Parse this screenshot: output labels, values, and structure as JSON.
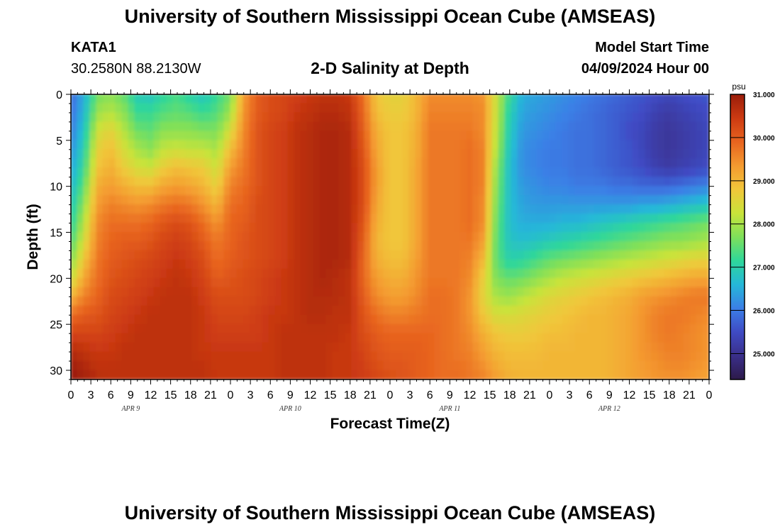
{
  "header": {
    "title": "University of Southern Mississippi Ocean Cube (AMSEAS)",
    "station": "KATA1",
    "coords": "30.2580N  88.2130W",
    "subtitle": "2-D Salinity at Depth",
    "model_start_label": "Model Start Time",
    "model_start_value": "04/09/2024 Hour 00"
  },
  "footer": {
    "title": "University of Southern Mississippi Ocean Cube (AMSEAS)"
  },
  "chart_data": {
    "type": "heatmap",
    "title": "2-D Salinity at Depth",
    "xlabel": "Forecast Time(Z)",
    "ylabel": "Depth (ft)",
    "x_range_hours": [
      0,
      96
    ],
    "y_range_ft": [
      0,
      31
    ],
    "x_tick_labels": [
      "0",
      "3",
      "6",
      "9",
      "12",
      "15",
      "18",
      "21",
      "0",
      "3",
      "6",
      "9",
      "12",
      "15",
      "18",
      "21",
      "0",
      "3",
      "6",
      "9",
      "12",
      "15",
      "18",
      "21",
      "0",
      "3",
      "6",
      "9",
      "12",
      "15",
      "18",
      "21",
      "0"
    ],
    "day_labels": [
      "APR 9",
      "APR 10",
      "APR 11",
      "APR 12"
    ],
    "y_ticks": [
      0,
      5,
      10,
      15,
      20,
      25,
      30
    ],
    "colorbar": {
      "unit": "psu",
      "min": 24.4,
      "max": 31.0,
      "ticks": [
        "31.000",
        "30.000",
        "29.000",
        "28.000",
        "27.000",
        "26.000",
        "25.000"
      ],
      "colors": [
        "#2d1a4a",
        "#3a2f8a",
        "#3f4bc4",
        "#3b7fe6",
        "#25b8d8",
        "#2fd79a",
        "#7fe05a",
        "#c9e33a",
        "#f1c63a",
        "#f49a30",
        "#e8641f",
        "#cc3a12",
        "#9a1d0a"
      ]
    },
    "time_hours": [
      0,
      2,
      4,
      6,
      8,
      10,
      12,
      14,
      16,
      18,
      20,
      22,
      24,
      26,
      28,
      30,
      32,
      34,
      36,
      38,
      40,
      42,
      44,
      46,
      48,
      50,
      52,
      54,
      56,
      58,
      60,
      62,
      64,
      66,
      68,
      70,
      72,
      74,
      76,
      78,
      80,
      82,
      84,
      86,
      88,
      90,
      92,
      94,
      96
    ],
    "depths_ft": [
      0,
      2,
      4,
      6,
      8,
      10,
      12,
      14,
      16,
      18,
      20,
      22,
      24,
      26,
      28,
      30,
      31
    ],
    "salinity_psu": [
      [
        25.8,
        26.5,
        27.6,
        27.8,
        27.5,
        26.9,
        26.8,
        27.1,
        27.3,
        27.0,
        26.8,
        27.2,
        27.6,
        29.3,
        30.0,
        30.2,
        30.3,
        30.4,
        30.5,
        30.6,
        30.6,
        30.5,
        29.8,
        28.8,
        28.6,
        28.6,
        29.0,
        29.5,
        29.5,
        29.5,
        29.5,
        29.4,
        28.3,
        27.2,
        26.5,
        26.4,
        26.3,
        26.2,
        26.1,
        26.0,
        25.9,
        25.8,
        25.7,
        25.6,
        25.5,
        25.4,
        25.5,
        25.6,
        25.6
      ],
      [
        25.9,
        26.6,
        27.9,
        28.1,
        27.8,
        27.2,
        27.2,
        27.4,
        27.5,
        27.4,
        27.2,
        27.4,
        27.9,
        29.4,
        30.0,
        30.2,
        30.3,
        30.5,
        30.6,
        30.7,
        30.7,
        30.6,
        29.9,
        28.9,
        28.7,
        28.7,
        29.0,
        29.6,
        29.6,
        29.6,
        29.6,
        29.5,
        28.3,
        27.0,
        26.4,
        26.3,
        26.2,
        26.1,
        26.0,
        25.9,
        25.8,
        25.7,
        25.6,
        25.5,
        25.3,
        25.2,
        25.3,
        25.4,
        25.5
      ],
      [
        26.0,
        26.8,
        28.3,
        28.6,
        28.1,
        27.6,
        27.5,
        27.8,
        27.8,
        27.8,
        27.7,
        27.7,
        28.4,
        29.5,
        30.1,
        30.3,
        30.4,
        30.6,
        30.7,
        30.8,
        30.8,
        30.7,
        30.0,
        29.1,
        28.8,
        28.8,
        29.1,
        29.7,
        29.7,
        29.7,
        29.7,
        29.5,
        28.2,
        26.9,
        26.3,
        26.2,
        26.1,
        26.0,
        25.9,
        25.9,
        25.8,
        25.7,
        25.5,
        25.4,
        25.2,
        25.1,
        25.2,
        25.3,
        25.4
      ],
      [
        26.2,
        27.0,
        28.6,
        28.9,
        28.4,
        28.0,
        27.8,
        28.2,
        28.3,
        28.2,
        28.2,
        28.0,
        28.9,
        29.6,
        30.1,
        30.3,
        30.4,
        30.6,
        30.7,
        30.8,
        30.8,
        30.7,
        30.1,
        29.2,
        28.8,
        28.8,
        29.1,
        29.7,
        29.7,
        29.7,
        29.8,
        29.6,
        28.1,
        26.8,
        26.2,
        26.1,
        26.0,
        26.0,
        25.9,
        25.9,
        25.8,
        25.7,
        25.6,
        25.4,
        25.2,
        25.1,
        25.2,
        25.3,
        25.4
      ],
      [
        26.4,
        27.2,
        28.8,
        29.1,
        28.7,
        28.4,
        28.3,
        28.7,
        28.9,
        28.8,
        28.7,
        28.3,
        29.3,
        29.7,
        30.1,
        30.3,
        30.4,
        30.6,
        30.7,
        30.8,
        30.8,
        30.7,
        30.2,
        29.3,
        28.8,
        28.8,
        29.2,
        29.7,
        29.7,
        29.7,
        29.8,
        29.6,
        27.9,
        26.7,
        26.2,
        26.1,
        26.0,
        26.0,
        25.9,
        25.9,
        25.8,
        25.7,
        25.6,
        25.5,
        25.3,
        25.2,
        25.3,
        25.4,
        25.5
      ],
      [
        26.6,
        27.5,
        29.1,
        29.3,
        29.1,
        28.9,
        28.9,
        29.2,
        29.3,
        29.2,
        29.0,
        28.6,
        29.6,
        29.8,
        30.1,
        30.3,
        30.4,
        30.6,
        30.7,
        30.8,
        30.8,
        30.7,
        30.2,
        29.3,
        28.8,
        28.8,
        29.2,
        29.7,
        29.7,
        29.7,
        29.8,
        29.6,
        27.8,
        26.7,
        26.3,
        26.2,
        26.1,
        26.1,
        26.0,
        26.0,
        26.0,
        25.9,
        25.9,
        25.8,
        25.8,
        25.8,
        25.9,
        26.0,
        26.1
      ],
      [
        26.8,
        27.8,
        29.3,
        29.6,
        29.5,
        29.4,
        29.5,
        29.7,
        29.8,
        29.7,
        29.4,
        29.0,
        29.8,
        29.9,
        30.2,
        30.3,
        30.4,
        30.6,
        30.7,
        30.8,
        30.8,
        30.7,
        30.2,
        29.2,
        28.8,
        28.8,
        29.2,
        29.7,
        29.7,
        29.7,
        29.8,
        29.5,
        27.7,
        26.7,
        26.4,
        26.3,
        26.3,
        26.3,
        26.3,
        26.3,
        26.3,
        26.3,
        26.3,
        26.4,
        26.4,
        26.5,
        26.6,
        26.7,
        26.8
      ],
      [
        27.0,
        28.1,
        29.5,
        29.8,
        29.8,
        29.8,
        29.9,
        30.1,
        30.2,
        30.1,
        29.8,
        29.4,
        29.9,
        30.0,
        30.2,
        30.3,
        30.4,
        30.6,
        30.7,
        30.8,
        30.8,
        30.7,
        30.1,
        29.1,
        28.8,
        28.8,
        29.2,
        29.7,
        29.7,
        29.7,
        29.8,
        29.5,
        27.6,
        26.7,
        26.5,
        26.5,
        26.5,
        26.6,
        26.6,
        26.7,
        26.8,
        26.9,
        27.0,
        27.1,
        27.2,
        27.3,
        27.4,
        27.5,
        27.6
      ],
      [
        27.3,
        28.4,
        29.6,
        29.9,
        30.0,
        30.0,
        30.1,
        30.3,
        30.4,
        30.3,
        30.0,
        29.7,
        29.9,
        30.1,
        30.2,
        30.3,
        30.4,
        30.6,
        30.7,
        30.8,
        30.8,
        30.7,
        30.0,
        29.0,
        28.8,
        28.8,
        29.2,
        29.7,
        29.7,
        29.7,
        29.7,
        29.3,
        27.5,
        26.8,
        26.7,
        26.8,
        26.9,
        27.0,
        27.1,
        27.2,
        27.3,
        27.4,
        27.5,
        27.6,
        27.7,
        27.8,
        27.8,
        27.9,
        28.0
      ],
      [
        27.7,
        28.8,
        29.7,
        30.0,
        30.1,
        30.2,
        30.3,
        30.4,
        30.5,
        30.4,
        30.2,
        29.8,
        30.0,
        30.1,
        30.2,
        30.3,
        30.4,
        30.6,
        30.7,
        30.8,
        30.8,
        30.7,
        29.9,
        29.1,
        28.9,
        28.9,
        29.3,
        29.7,
        29.7,
        29.7,
        29.6,
        29.0,
        27.5,
        27.0,
        27.1,
        27.3,
        27.5,
        27.6,
        27.7,
        27.8,
        27.9,
        28.0,
        28.1,
        28.2,
        28.3,
        28.4,
        28.5,
        28.6,
        28.6
      ],
      [
        28.2,
        29.2,
        29.8,
        30.1,
        30.2,
        30.3,
        30.4,
        30.5,
        30.6,
        30.5,
        30.3,
        30.0,
        30.1,
        30.2,
        30.3,
        30.4,
        30.5,
        30.6,
        30.7,
        30.8,
        30.7,
        30.6,
        29.9,
        29.3,
        29.1,
        29.1,
        29.4,
        29.7,
        29.7,
        29.7,
        29.5,
        28.7,
        27.7,
        27.5,
        27.6,
        27.8,
        28.0,
        28.2,
        28.3,
        28.4,
        28.5,
        28.6,
        28.7,
        28.8,
        28.9,
        29.0,
        29.1,
        29.2,
        29.2
      ],
      [
        29.0,
        29.6,
        29.9,
        30.2,
        30.3,
        30.4,
        30.5,
        30.6,
        30.6,
        30.6,
        30.4,
        30.2,
        30.2,
        30.2,
        30.3,
        30.4,
        30.5,
        30.6,
        30.7,
        30.7,
        30.7,
        30.6,
        30.0,
        29.5,
        29.3,
        29.3,
        29.5,
        29.8,
        29.8,
        29.7,
        29.4,
        28.6,
        28.0,
        27.9,
        28.1,
        28.3,
        28.5,
        28.6,
        28.7,
        28.8,
        28.9,
        29.0,
        29.1,
        29.3,
        29.4,
        29.5,
        29.6,
        29.7,
        29.7
      ],
      [
        29.8,
        30.0,
        30.1,
        30.3,
        30.4,
        30.5,
        30.6,
        30.6,
        30.6,
        30.6,
        30.5,
        30.3,
        30.3,
        30.3,
        30.4,
        30.5,
        30.5,
        30.6,
        30.7,
        30.7,
        30.6,
        30.6,
        30.1,
        29.8,
        29.6,
        29.6,
        29.7,
        29.8,
        29.8,
        29.7,
        29.4,
        28.8,
        28.4,
        28.4,
        28.5,
        28.6,
        28.7,
        28.8,
        28.9,
        29.0,
        29.0,
        29.1,
        29.2,
        29.4,
        29.6,
        29.7,
        29.7,
        29.6,
        29.5
      ],
      [
        30.3,
        30.3,
        30.3,
        30.4,
        30.5,
        30.6,
        30.6,
        30.6,
        30.6,
        30.6,
        30.5,
        30.4,
        30.4,
        30.4,
        30.4,
        30.5,
        30.6,
        30.6,
        30.6,
        30.6,
        30.6,
        30.5,
        30.2,
        30.0,
        29.9,
        29.9,
        29.9,
        29.9,
        29.8,
        29.7,
        29.5,
        29.1,
        28.8,
        28.7,
        28.7,
        28.8,
        28.9,
        28.9,
        29.0,
        29.0,
        29.0,
        29.1,
        29.2,
        29.4,
        29.6,
        29.7,
        29.6,
        29.5,
        29.4
      ],
      [
        30.7,
        30.6,
        30.5,
        30.5,
        30.6,
        30.6,
        30.6,
        30.6,
        30.6,
        30.6,
        30.5,
        30.5,
        30.5,
        30.5,
        30.5,
        30.5,
        30.6,
        30.6,
        30.6,
        30.6,
        30.5,
        30.5,
        30.3,
        30.1,
        30.0,
        30.0,
        30.0,
        29.9,
        29.8,
        29.7,
        29.6,
        29.3,
        29.0,
        28.9,
        28.9,
        28.9,
        29.0,
        29.0,
        29.0,
        29.0,
        29.0,
        29.1,
        29.2,
        29.4,
        29.5,
        29.6,
        29.6,
        29.5,
        29.4
      ],
      [
        31.0,
        30.8,
        30.6,
        30.6,
        30.6,
        30.6,
        30.6,
        30.6,
        30.6,
        30.6,
        30.6,
        30.5,
        30.5,
        30.5,
        30.5,
        30.5,
        30.6,
        30.6,
        30.6,
        30.6,
        30.5,
        30.5,
        30.4,
        30.2,
        30.1,
        30.1,
        30.0,
        29.9,
        29.8,
        29.8,
        29.7,
        29.5,
        29.2,
        29.0,
        29.0,
        29.0,
        29.0,
        29.0,
        29.0,
        29.0,
        29.0,
        29.1,
        29.2,
        29.3,
        29.4,
        29.5,
        29.5,
        29.4,
        29.3
      ],
      [
        31.0,
        30.9,
        30.7,
        30.6,
        30.6,
        30.6,
        30.6,
        30.6,
        30.6,
        30.6,
        30.6,
        30.5,
        30.5,
        30.5,
        30.5,
        30.5,
        30.6,
        30.6,
        30.6,
        30.6,
        30.5,
        30.5,
        30.4,
        30.3,
        30.2,
        30.1,
        30.0,
        29.9,
        29.8,
        29.8,
        29.7,
        29.6,
        29.3,
        29.1,
        29.0,
        29.0,
        29.0,
        29.0,
        29.0,
        29.0,
        29.0,
        29.1,
        29.2,
        29.3,
        29.4,
        29.4,
        29.4,
        29.3,
        29.2
      ]
    ]
  }
}
